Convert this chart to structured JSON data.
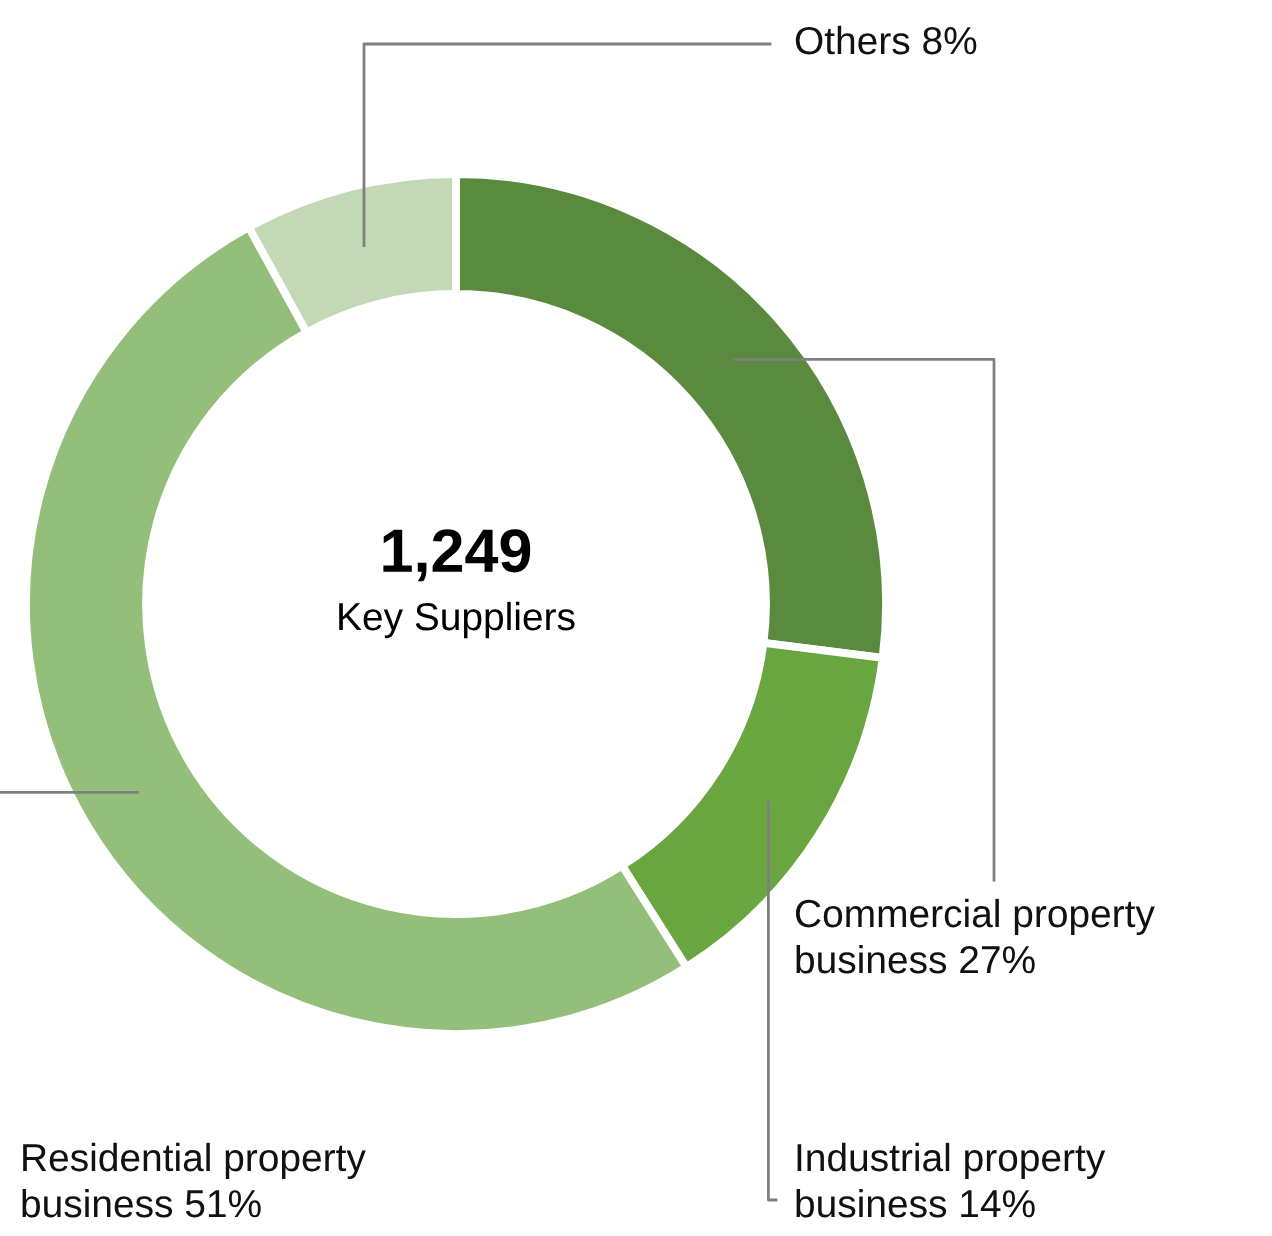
{
  "chart_data": {
    "type": "donut",
    "categories": [
      "Commercial property business",
      "Industrial property business",
      "Residential property business",
      "Others"
    ],
    "values": [
      27,
      14,
      51,
      8
    ],
    "value_labels": [
      "27%",
      "14%",
      "51%",
      "8%"
    ],
    "colors": [
      "#5a8a3e",
      "#6aa640",
      "#93bf7b",
      "#c3d9b6"
    ],
    "annotations": [
      "1,249",
      "Key Suppliers"
    ],
    "legend": false
  }
}
